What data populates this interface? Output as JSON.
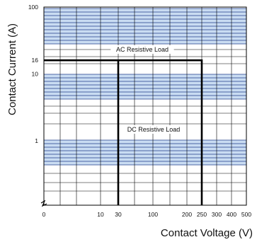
{
  "chart_data": {
    "type": "line",
    "title": "",
    "xlabel": "Contact  Voltage (V)",
    "ylabel": "Contact Current (A)",
    "x_scale": "custom",
    "y_scale": "log",
    "x_ticks": [
      "0",
      "10",
      "30",
      "100",
      "200",
      "250",
      "300",
      "400",
      "500"
    ],
    "y_ticks": [
      "1",
      "10",
      "16",
      "100"
    ],
    "grid": true,
    "grid_color": "#1f3d8a",
    "band_color": "#c9dcf2",
    "line_color": "#000000",
    "series": [
      {
        "name": "AC Resistive Load",
        "points": [
          [
            0,
            16
          ],
          [
            250,
            16
          ],
          [
            250,
            0
          ]
        ]
      },
      {
        "name": "DC Resistive Load",
        "points": [
          [
            30,
            0
          ],
          [
            30,
            16
          ]
        ]
      }
    ]
  }
}
